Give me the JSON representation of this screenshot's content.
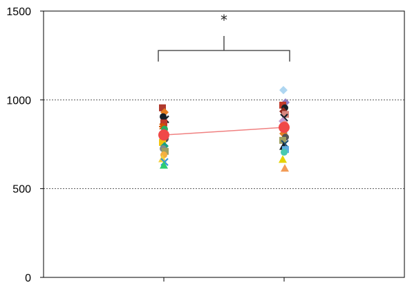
{
  "chart_data": {
    "type": "scatter",
    "ylim": [
      0,
      1500
    ],
    "y_ticks": [
      0,
      500,
      1000,
      1500
    ],
    "y_tick_labels": [
      "0",
      "500",
      "1000",
      "1500"
    ],
    "dashed_gridlines_at": [
      500,
      1000
    ],
    "x_positions": [
      1,
      2
    ],
    "xlim": [
      0,
      3
    ],
    "significance_marker": "*",
    "mean_line": {
      "color": "#f08080",
      "marker_color": "#f04848",
      "points": [
        {
          "x": 1,
          "y": 802
        },
        {
          "x": 2,
          "y": 845
        }
      ]
    },
    "individual_points": [
      {
        "x": 1,
        "y": 955,
        "marker": "square",
        "color": "#b03a2e"
      },
      {
        "x": 1,
        "y": 930,
        "marker": "diamond",
        "color": "#e67e22"
      },
      {
        "x": 1,
        "y": 905,
        "marker": "circle",
        "color": "#17202a"
      },
      {
        "x": 1,
        "y": 890,
        "marker": "cross",
        "color": "#17202a"
      },
      {
        "x": 1,
        "y": 870,
        "marker": "square",
        "color": "#c0392b"
      },
      {
        "x": 1,
        "y": 850,
        "marker": "star",
        "color": "#d35400"
      },
      {
        "x": 1,
        "y": 835,
        "marker": "circle",
        "color": "#27ae60"
      },
      {
        "x": 1,
        "y": 815,
        "marker": "diamond",
        "color": "#8e44ad"
      },
      {
        "x": 1,
        "y": 795,
        "marker": "triangle",
        "color": "#2980b9"
      },
      {
        "x": 1,
        "y": 780,
        "marker": "circle",
        "color": "#555555"
      },
      {
        "x": 1,
        "y": 760,
        "marker": "square",
        "color": "#f1c40f"
      },
      {
        "x": 1,
        "y": 740,
        "marker": "diamond",
        "color": "#16a085"
      },
      {
        "x": 1,
        "y": 725,
        "marker": "circle",
        "color": "#7f8c8d"
      },
      {
        "x": 1,
        "y": 710,
        "marker": "square",
        "color": "#a0a060"
      },
      {
        "x": 1,
        "y": 690,
        "marker": "circle",
        "color": "#f5b041"
      },
      {
        "x": 1,
        "y": 668,
        "marker": "triangle",
        "color": "#f4d03f"
      },
      {
        "x": 1,
        "y": 650,
        "marker": "cross",
        "color": "#3498db"
      },
      {
        "x": 1,
        "y": 632,
        "marker": "triangle",
        "color": "#2ecc71"
      },
      {
        "x": 2,
        "y": 1055,
        "marker": "diamond",
        "color": "#aed6f1"
      },
      {
        "x": 2,
        "y": 985,
        "marker": "diamond",
        "color": "#8e7cc3"
      },
      {
        "x": 2,
        "y": 970,
        "marker": "square",
        "color": "#c0392b"
      },
      {
        "x": 2,
        "y": 955,
        "marker": "circle",
        "color": "#17202a"
      },
      {
        "x": 2,
        "y": 935,
        "marker": "diamond",
        "color": "#922b21"
      },
      {
        "x": 2,
        "y": 918,
        "marker": "square",
        "color": "#d98880"
      },
      {
        "x": 2,
        "y": 900,
        "marker": "cross",
        "color": "#17202a"
      },
      {
        "x": 2,
        "y": 880,
        "marker": "diamond",
        "color": "#c39bd3"
      },
      {
        "x": 2,
        "y": 862,
        "marker": "circle",
        "color": "#f1948a"
      },
      {
        "x": 2,
        "y": 828,
        "marker": "star",
        "color": "#2e86c1"
      },
      {
        "x": 2,
        "y": 810,
        "marker": "diamond",
        "color": "#e67e22"
      },
      {
        "x": 2,
        "y": 790,
        "marker": "circle",
        "color": "#555555"
      },
      {
        "x": 2,
        "y": 772,
        "marker": "square",
        "color": "#a0a060"
      },
      {
        "x": 2,
        "y": 752,
        "marker": "cross",
        "color": "#1b4f72"
      },
      {
        "x": 2,
        "y": 738,
        "marker": "triangle",
        "color": "#17202a"
      },
      {
        "x": 2,
        "y": 720,
        "marker": "square",
        "color": "#5dade2"
      },
      {
        "x": 2,
        "y": 705,
        "marker": "circle",
        "color": "#48c9b0"
      },
      {
        "x": 2,
        "y": 665,
        "marker": "triangle",
        "color": "#e5d300"
      },
      {
        "x": 2,
        "y": 615,
        "marker": "triangle",
        "color": "#f39c57"
      }
    ]
  }
}
